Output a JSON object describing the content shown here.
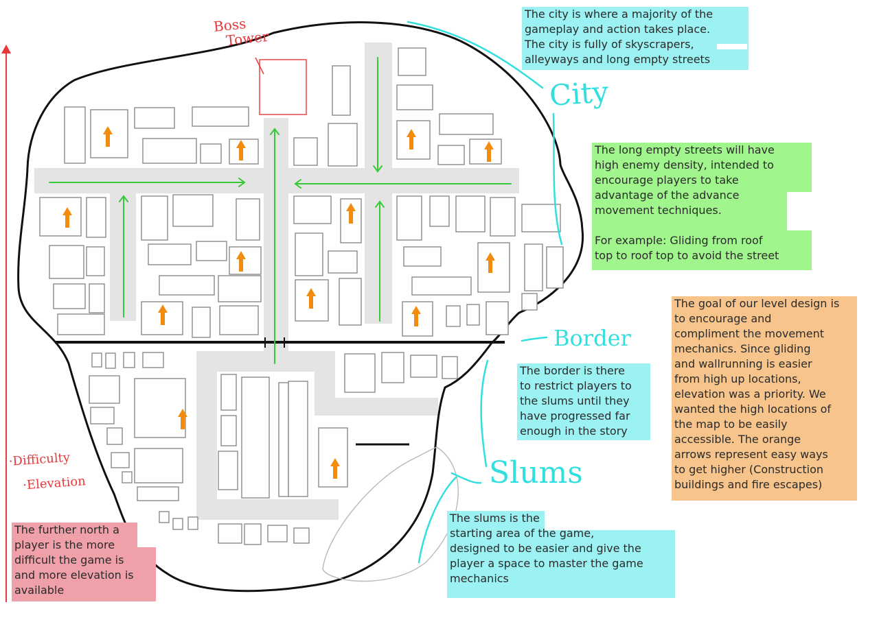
{
  "labels": {
    "boss_tower": [
      "Boss",
      "Tower"
    ],
    "city": "City",
    "border": "Border",
    "slums": "Slums",
    "legend": [
      "·Difficulty",
      "·Elevation"
    ]
  },
  "notes": {
    "city": [
      "The city is where a majority of the",
      "gameplay and action takes place.",
      "The city is fully of skyscrapers,",
      "alleyways and long empty streets"
    ],
    "streets": [
      "The long empty streets will have",
      "high enemy density, intended to",
      "encourage players to take",
      "advantage of the advance",
      "movement techniques.",
      "",
      "For example: Gliding from roof",
      "top to roof top to avoid the street"
    ],
    "goal": [
      "The goal of our level design is",
      "to encourage and",
      "compliment the movement",
      "mechanics. Since gliding",
      "and wallrunning is easier",
      "from high up locations,",
      "elevation was a priority. We",
      "wanted the high locations of",
      "the map to be easily",
      "accessible. The orange",
      "arrows represent easy ways",
      "to get higher (Construction",
      "buildings and fire escapes)"
    ],
    "border": [
      "The border is there",
      "to restrict players to",
      "the slums until they",
      "have progressed far",
      "enough in the story"
    ],
    "slums": [
      "The slums is the",
      "starting area of the game,",
      "designed to be easier and give the",
      "player a space to master the game",
      "mechanics"
    ],
    "difficulty": [
      "The further north a",
      "player is the more",
      "difficult the game is",
      "and more elevation is",
      "available"
    ]
  },
  "colors": {
    "cyan": "#9cf2f2",
    "green": "#a0f58c",
    "orange": "#f7c48c",
    "pink": "#f0a0a8",
    "street": "#e4e4e4",
    "arrow_green": "#37c837",
    "arrow_orange": "#f28c0f",
    "accent_cyan": "#33dede",
    "red": "#e8383a"
  }
}
